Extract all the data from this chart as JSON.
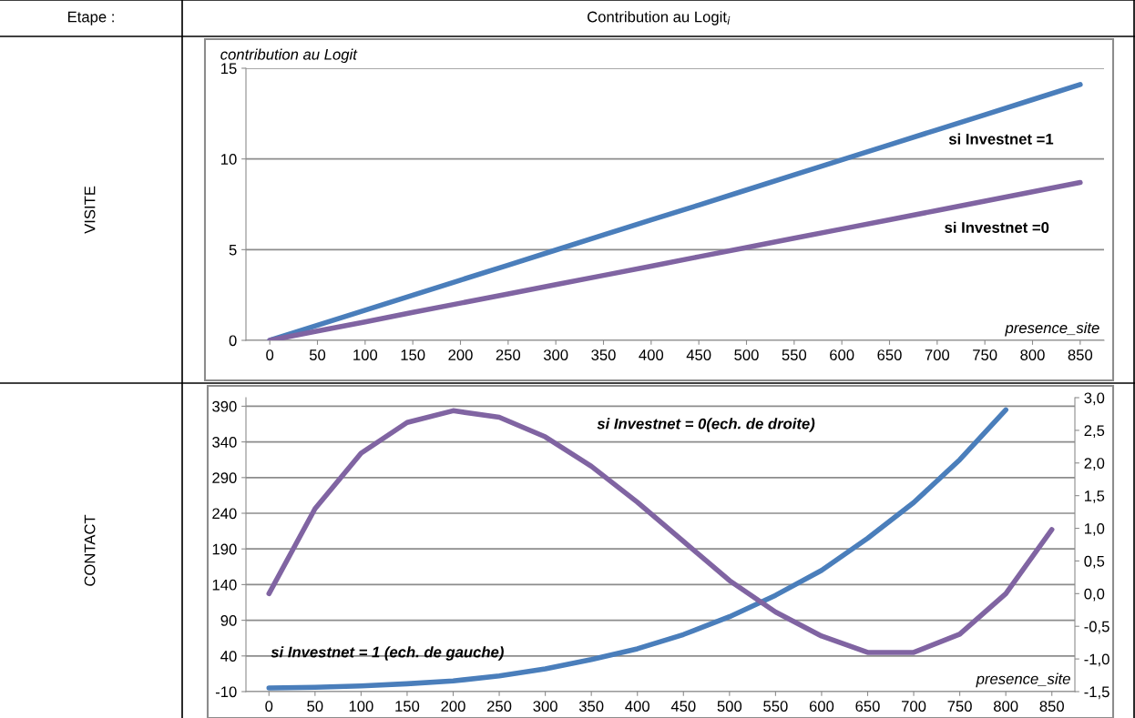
{
  "chart_data": [
    {
      "type": "line",
      "title": "Contribution au Logit$_{i}$",
      "ylabel": "contribution au Logit",
      "xlabel": "presence_site",
      "categories": [
        "0",
        "50",
        "100",
        "150",
        "200",
        "250",
        "300",
        "350",
        "400",
        "450",
        "500",
        "550",
        "600",
        "650",
        "700",
        "750",
        "800",
        "850"
      ],
      "series": [
        {
          "color": "#4a7ebb",
          "values": [
            0,
            0.83,
            1.66,
            2.49,
            3.32,
            4.15,
            4.98,
            5.81,
            6.64,
            7.46,
            8.29,
            9.12,
            9.95,
            10.78,
            11.61,
            12.44,
            13.27,
            14.1
          ]
        },
        {
          "color": "#8064a2",
          "values": [
            0,
            0.51,
            1.02,
            1.54,
            2.05,
            2.56,
            3.07,
            3.58,
            4.09,
            4.61,
            5.12,
            5.63,
            6.14,
            6.65,
            7.16,
            7.68,
            8.19,
            8.7
          ]
        }
      ],
      "ylim": [
        0,
        15
      ],
      "yticks": [
        0,
        5,
        10,
        15
      ],
      "grid": "y",
      "legend": false,
      "line_style": "solid",
      "marker": "none",
      "annotations": [
        "Etape :",
        "VISITE",
        "si Investnet =1",
        "si Investnet =0"
      ]
    },
    {
      "type": "line",
      "xlabel": "presence_site",
      "categories": [
        "0",
        "50",
        "100",
        "150",
        "200",
        "250",
        "300",
        "350",
        "400",
        "450",
        "500",
        "550",
        "600",
        "650",
        "700",
        "750",
        "800",
        "850"
      ],
      "series": [
        {
          "color": "#4a7ebb",
          "values": [
            -5,
            -4,
            -2,
            1,
            5,
            12,
            22,
            35,
            50,
            70,
            95,
            125,
            160,
            205,
            255,
            315,
            385,
            null
          ]
        },
        {
          "color": "#8064a2",
          "axis": "y2",
          "values": [
            0.0,
            1.3,
            2.15,
            2.62,
            2.8,
            2.7,
            2.4,
            1.95,
            1.4,
            0.8,
            0.2,
            -0.28,
            -0.65,
            -0.9,
            -0.9,
            -0.62,
            0.0,
            0.98
          ]
        }
      ],
      "ylim": [
        -10,
        402
      ],
      "yticks": [
        -10,
        40,
        90,
        140,
        190,
        240,
        290,
        340,
        390
      ],
      "y2lim": [
        -1.5,
        3.0
      ],
      "y2ticks": [
        {
          "value": -1.5,
          "label": "-1,5"
        },
        {
          "value": -1.0,
          "label": "-1,0"
        },
        {
          "value": -0.5,
          "label": "-0,5"
        },
        {
          "value": 0.0,
          "label": "0,0"
        },
        {
          "value": 0.5,
          "label": "0,5"
        },
        {
          "value": 1.0,
          "label": "1,0"
        },
        {
          "value": 1.5,
          "label": "1,5"
        },
        {
          "value": 2.0,
          "label": "2,0"
        },
        {
          "value": 2.5,
          "label": "2,5"
        },
        {
          "value": 3.0,
          "label": "3,0"
        }
      ],
      "grid": "y",
      "legend": false,
      "line_style": "solid",
      "marker": "none",
      "annotations": [
        "CONTACT",
        "si Investnet = 0(ech. de droite)",
        "si Investnet = 1 (ech. de gauche)"
      ]
    }
  ]
}
